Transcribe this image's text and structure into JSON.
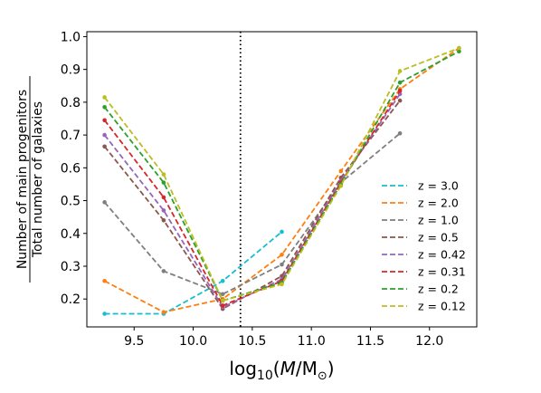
{
  "chart_data": {
    "type": "line",
    "title": "",
    "xlabel": {
      "prefix": "log",
      "subscript": "10",
      "open": "(",
      "var": "M",
      "slash": "/",
      "unit": "M",
      "unit_sub": "⊙",
      "close": ")"
    },
    "ylabel": {
      "numerator": "Number of main progenitors",
      "denominator": "Total number of galaxies"
    },
    "xlim": [
      9.1,
      12.4
    ],
    "ylim": [
      0.115,
      1.015
    ],
    "xticks": [
      9.5,
      10.0,
      10.5,
      11.0,
      11.5,
      12.0
    ],
    "xtick_labels": [
      "9.5",
      "10.0",
      "10.5",
      "11.0",
      "11.5",
      "12.0"
    ],
    "yticks": [
      0.2,
      0.3,
      0.4,
      0.5,
      0.6,
      0.7,
      0.8,
      0.9,
      1.0
    ],
    "ytick_labels": [
      "0.2",
      "0.3",
      "0.4",
      "0.5",
      "0.6",
      "0.7",
      "0.8",
      "0.9",
      "1.0"
    ],
    "grid": false,
    "legend_position": "lower-right",
    "vline": {
      "x": 10.4,
      "style": "dotted",
      "color": "#000000"
    },
    "series": [
      {
        "name": "z = 3.0",
        "color": "#17becf",
        "points": [
          [
            9.25,
            0.155
          ],
          [
            9.75,
            0.155
          ],
          [
            10.25,
            0.255
          ],
          [
            10.75,
            0.405
          ]
        ]
      },
      {
        "name": "z = 2.0",
        "color": "#ff7f0e",
        "points": [
          [
            9.25,
            0.255
          ],
          [
            9.75,
            0.16
          ],
          [
            10.25,
            0.2
          ],
          [
            10.75,
            0.335
          ],
          [
            11.25,
            0.59
          ],
          [
            11.75,
            0.84
          ],
          [
            12.25,
            0.965
          ]
        ]
      },
      {
        "name": "z = 1.0",
        "color": "#7f7f7f",
        "points": [
          [
            9.25,
            0.495
          ],
          [
            9.75,
            0.285
          ],
          [
            10.25,
            0.215
          ],
          [
            10.75,
            0.305
          ],
          [
            11.25,
            0.555
          ],
          [
            11.75,
            0.705
          ]
        ]
      },
      {
        "name": "z = 0.5",
        "color": "#8c564b",
        "points": [
          [
            9.25,
            0.665
          ],
          [
            9.75,
            0.44
          ],
          [
            10.25,
            0.17
          ],
          [
            10.75,
            0.27
          ],
          [
            11.25,
            0.57
          ],
          [
            11.75,
            0.805
          ]
        ]
      },
      {
        "name": "z = 0.42",
        "color": "#9467bd",
        "points": [
          [
            9.25,
            0.7
          ],
          [
            9.75,
            0.47
          ],
          [
            10.25,
            0.175
          ],
          [
            10.75,
            0.26
          ],
          [
            11.25,
            0.56
          ],
          [
            11.75,
            0.825
          ]
        ]
      },
      {
        "name": "z = 0.31",
        "color": "#d62728",
        "points": [
          [
            9.25,
            0.745
          ],
          [
            9.75,
            0.51
          ],
          [
            10.25,
            0.18
          ],
          [
            10.75,
            0.255
          ],
          [
            11.25,
            0.555
          ],
          [
            11.75,
            0.835
          ]
        ]
      },
      {
        "name": "z = 0.2",
        "color": "#2ca02c",
        "points": [
          [
            9.25,
            0.785
          ],
          [
            9.75,
            0.555
          ],
          [
            10.25,
            0.195
          ],
          [
            10.75,
            0.25
          ],
          [
            11.25,
            0.55
          ],
          [
            11.75,
            0.86
          ],
          [
            12.25,
            0.955
          ]
        ]
      },
      {
        "name": "z = 0.12",
        "color": "#bcbd22",
        "points": [
          [
            9.25,
            0.815
          ],
          [
            9.75,
            0.58
          ],
          [
            10.25,
            0.195
          ],
          [
            10.75,
            0.245
          ],
          [
            11.25,
            0.545
          ],
          [
            11.75,
            0.895
          ],
          [
            12.25,
            0.965
          ]
        ]
      }
    ]
  }
}
